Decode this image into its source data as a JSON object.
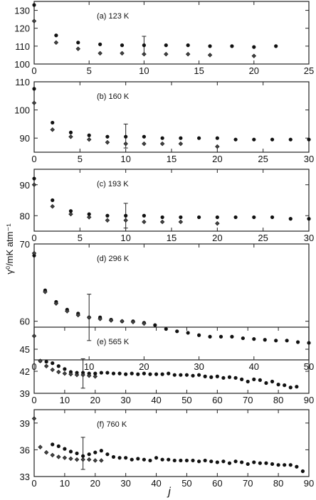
{
  "figure": {
    "ylabel": "γ⁰/mK atm⁻¹",
    "xlabel": "j"
  },
  "chart_data": [
    {
      "type": "scatter",
      "title": "(a) 123 K",
      "xlim": [
        0,
        25
      ],
      "ylim": [
        100,
        135
      ],
      "xticks": [
        0,
        5,
        10,
        15,
        20,
        25
      ],
      "yticks": [
        100,
        110,
        120,
        130
      ],
      "series": [
        {
          "marker": "circle",
          "x": [
            0,
            2,
            4,
            6,
            8,
            10,
            12,
            14,
            16,
            18,
            20,
            22
          ],
          "y": [
            133,
            116,
            112,
            111,
            110.5,
            110.5,
            110.5,
            110.5,
            110,
            110,
            109.5,
            110
          ]
        },
        {
          "marker": "diamond",
          "x": [
            0,
            2,
            4,
            6,
            8,
            10,
            12,
            14,
            16,
            20
          ],
          "y": [
            124,
            112,
            108.5,
            106,
            106,
            105.5,
            105.5,
            105.5,
            105,
            104.5
          ]
        }
      ],
      "error_bars": [
        {
          "x": 10,
          "low": 105.5,
          "high": 115.5
        }
      ]
    },
    {
      "type": "scatter",
      "title": "(b) 160 K",
      "xlim": [
        0,
        30
      ],
      "ylim": [
        85,
        110
      ],
      "xticks": [
        0,
        5,
        10,
        15,
        20,
        25,
        30
      ],
      "yticks": [
        90,
        100,
        110
      ],
      "series": [
        {
          "marker": "circle",
          "x": [
            0,
            2,
            4,
            6,
            8,
            10,
            12,
            14,
            16,
            18,
            20,
            22,
            24,
            26,
            28,
            30
          ],
          "y": [
            107.5,
            95.5,
            92,
            91,
            90.5,
            90.5,
            90.5,
            90,
            90,
            90,
            90,
            89.5,
            89.5,
            89.5,
            89.5,
            89.5
          ]
        },
        {
          "marker": "diamond",
          "x": [
            0,
            2,
            4,
            6,
            8,
            10,
            12,
            14,
            16,
            20
          ],
          "y": [
            102.5,
            93,
            90.5,
            89.5,
            88.5,
            88,
            88,
            88,
            88,
            87
          ]
        }
      ],
      "error_bars": [
        {
          "x": 10,
          "low": 86.5,
          "high": 95
        }
      ]
    },
    {
      "type": "scatter",
      "title": "(c) 193 K",
      "xlim": [
        0,
        30
      ],
      "ylim": [
        75,
        95
      ],
      "xticks": [
        0,
        5,
        10,
        15,
        20,
        25,
        30
      ],
      "yticks": [
        80,
        90
      ],
      "series": [
        {
          "marker": "circle",
          "x": [
            0,
            2,
            4,
            6,
            8,
            10,
            12,
            14,
            16,
            18,
            20,
            22,
            24,
            26,
            28,
            30
          ],
          "y": [
            92,
            85,
            81.5,
            80.5,
            80,
            80,
            80,
            79.5,
            79.5,
            79.5,
            79.5,
            79.5,
            79.5,
            79.5,
            79,
            79
          ]
        },
        {
          "marker": "diamond",
          "x": [
            0,
            2,
            4,
            6,
            8,
            10,
            12,
            14,
            16,
            20
          ],
          "y": [
            90,
            83,
            80.5,
            79.5,
            78.5,
            78.5,
            78,
            78,
            78,
            77.5
          ]
        }
      ],
      "error_bars": [
        {
          "x": 10,
          "low": 76,
          "high": 84
        }
      ]
    },
    {
      "type": "scatter",
      "title": "(d) 296 K",
      "xlim": [
        0,
        50
      ],
      "ylim": [
        55,
        70
      ],
      "xticks": [
        0,
        10,
        20,
        30,
        40,
        50
      ],
      "yticks": [
        60,
        70
      ],
      "series": [
        {
          "marker": "circle",
          "x": [
            0,
            2,
            4,
            6,
            8,
            10,
            12,
            14,
            16,
            18,
            20,
            22,
            24,
            26,
            28,
            30,
            32,
            34,
            36,
            38,
            40,
            42,
            44,
            46,
            48,
            50
          ],
          "y": [
            68.5,
            64,
            62.5,
            61.5,
            61,
            60.5,
            60.5,
            60.2,
            60,
            60,
            59.8,
            59.5,
            59,
            58.7,
            58.5,
            58.2,
            58,
            58,
            58,
            57.8,
            57.7,
            57.6,
            57.5,
            57.5,
            57.3,
            57.2
          ]
        },
        {
          "marker": "diamond",
          "x": [
            0,
            2,
            4,
            6,
            8,
            10,
            12,
            14,
            16,
            18,
            20
          ],
          "y": [
            68.8,
            63.8,
            62.3,
            61.3,
            60.8,
            60.5,
            60.3,
            60.1,
            60,
            59.9,
            59.7
          ]
        }
      ],
      "error_bars": [
        {
          "x": 10,
          "low": 57.5,
          "high": 63.5
        }
      ]
    },
    {
      "type": "scatter",
      "title": "(e) 565 K",
      "xlim": [
        0,
        90
      ],
      "ylim": [
        39,
        48
      ],
      "xticks": [
        0,
        10,
        20,
        30,
        40,
        50,
        60,
        70,
        80,
        90
      ],
      "yticks": [
        39,
        42,
        45
      ],
      "series": [
        {
          "marker": "circle",
          "x": [
            2,
            4,
            6,
            8,
            10,
            12,
            14,
            16,
            18,
            20,
            22,
            24,
            26,
            28,
            30,
            32,
            34,
            36,
            38,
            40,
            42,
            44,
            46,
            48,
            50,
            52,
            54,
            56,
            58,
            60,
            62,
            64,
            66,
            68,
            70,
            72,
            74,
            76,
            78,
            80,
            82,
            84,
            86
          ],
          "y": [
            43.4,
            43.3,
            43.1,
            42.7,
            42.3,
            41.9,
            41.8,
            41.8,
            41.7,
            41.7,
            41.8,
            41.8,
            41.7,
            41.7,
            41.6,
            41.7,
            41.6,
            41.7,
            41.6,
            41.6,
            41.6,
            41.7,
            41.5,
            41.5,
            41.5,
            41.4,
            41.5,
            41.3,
            41.2,
            41.3,
            41.1,
            41.2,
            41.1,
            40.9,
            40.6,
            40.9,
            40.8,
            40.4,
            40.6,
            40.2,
            40.1,
            39.8,
            39.9
          ]
        },
        {
          "marker": "diamond",
          "x": [
            0,
            2,
            4,
            6,
            8,
            10,
            12,
            14,
            16,
            18,
            20
          ],
          "y": [
            46.8,
            43.4,
            42.7,
            42.2,
            41.9,
            41.7,
            41.6,
            41.5,
            41.5,
            41.4,
            41.3
          ]
        }
      ],
      "error_bars": [
        {
          "x": 16,
          "low": 39.7,
          "high": 43.7
        }
      ]
    },
    {
      "type": "scatter",
      "title": "(f) 760 K",
      "xlim": [
        0,
        90
      ],
      "ylim": [
        33,
        40.5
      ],
      "xticks": [
        0,
        10,
        20,
        30,
        40,
        50,
        60,
        70,
        80,
        90
      ],
      "yticks": [
        33,
        36,
        39
      ],
      "series": [
        {
          "marker": "circle",
          "x": [
            6,
            8,
            10,
            12,
            14,
            16,
            18,
            20,
            22,
            24,
            26,
            28,
            30,
            32,
            34,
            36,
            38,
            40,
            42,
            44,
            46,
            48,
            50,
            52,
            54,
            56,
            58,
            60,
            62,
            64,
            66,
            68,
            70,
            72,
            74,
            76,
            78,
            80,
            82,
            84,
            86,
            88
          ],
          "y": [
            36.6,
            36.4,
            36.1,
            35.8,
            35.6,
            35.3,
            35.5,
            35.7,
            35.9,
            35.5,
            35.2,
            35.1,
            35.1,
            34.9,
            35.0,
            34.9,
            34.8,
            35.1,
            34.9,
            34.9,
            34.8,
            34.8,
            34.8,
            34.8,
            34.7,
            34.8,
            34.7,
            34.6,
            34.7,
            34.5,
            34.7,
            34.6,
            34.4,
            34.6,
            34.5,
            34.5,
            34.4,
            34.3,
            34.3,
            34.3,
            34.1,
            33.6
          ]
        },
        {
          "marker": "diamond",
          "x": [
            0,
            2,
            4,
            6,
            8,
            10,
            12,
            14,
            16,
            18,
            20,
            22
          ],
          "y": [
            39.5,
            36.3,
            35.7,
            35.4,
            35.2,
            35.1,
            35.0,
            34.9,
            34.9,
            34.9,
            34.8,
            34.8
          ]
        }
      ],
      "error_bars": [
        {
          "x": 16,
          "low": 33.8,
          "high": 37.4
        }
      ]
    }
  ]
}
